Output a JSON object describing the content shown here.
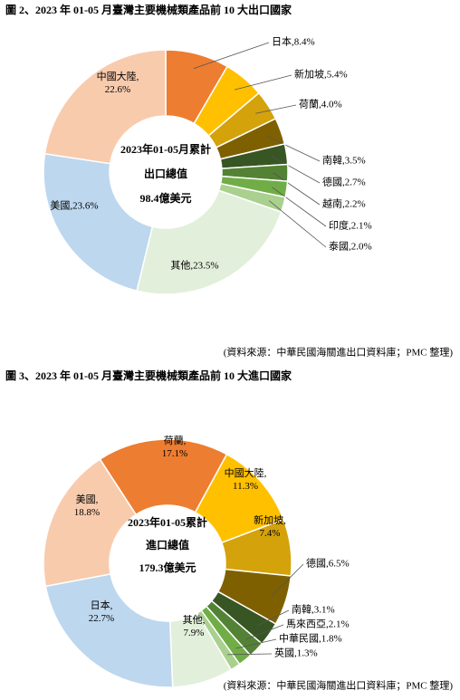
{
  "chart_data": [
    {
      "type": "donut",
      "title": "圖 2、2023 年 01-05 月臺灣主要機械類產品前 10 大出口國家",
      "center_text": [
        "2023年01-05月累計",
        "出口總值",
        "98.4億美元"
      ],
      "values": [
        8.4,
        5.4,
        4.0,
        3.5,
        2.7,
        2.2,
        2.1,
        2.0,
        23.5,
        23.6,
        22.6
      ],
      "value_labels": [
        "日本,8.4%",
        "新加坡,5.4%",
        "荷蘭,4.0%",
        "南韓,3.5%",
        "德國,2.7%",
        "越南,2.2%",
        "印度,2.1%",
        "泰國,2.0%",
        "其他,23.5%",
        "美國,23.6%",
        "中國大陸,\n22.6%"
      ],
      "colors": [
        "#ED7D31",
        "#FFC000",
        "#D4A20B",
        "#7F6000",
        "#375623",
        "#548235",
        "#70AD47",
        "#A9D08E",
        "#E2EFDA",
        "#BDD7EE",
        "#F8CBAD"
      ],
      "source": "(資料來源：中華民國海關進出口資料庫；PMC 整理)"
    },
    {
      "type": "donut",
      "title": "圖 3、2023 年 01-05 月臺灣主要機械類產品前 10 大進口國家",
      "center_text": [
        "2023年01-05累計",
        "進口總值",
        "179.3億美元"
      ],
      "values": [
        17.1,
        11.3,
        7.4,
        6.5,
        3.1,
        2.1,
        1.8,
        1.3,
        7.9,
        22.7,
        18.8
      ],
      "value_labels": [
        "荷蘭,\n17.1%",
        "中國大陸,\n11.3%",
        "新加坡,\n7.4%",
        "德國,6.5%",
        "南韓,3.1%",
        "馬來西亞,2.1%",
        "中華民國,1.8%",
        "英國,1.3%",
        "其他,\n7.9%",
        "日本,\n22.7%",
        "美國,\n18.8%"
      ],
      "colors": [
        "#ED7D31",
        "#FFC000",
        "#D4A20B",
        "#7F6000",
        "#375623",
        "#548235",
        "#70AD47",
        "#A9D08E",
        "#E2EFDA",
        "#BDD7EE",
        "#F8CBAD"
      ],
      "source": "(資料來源：中華民國海關進出口資料庫；PMC 整理)"
    }
  ]
}
